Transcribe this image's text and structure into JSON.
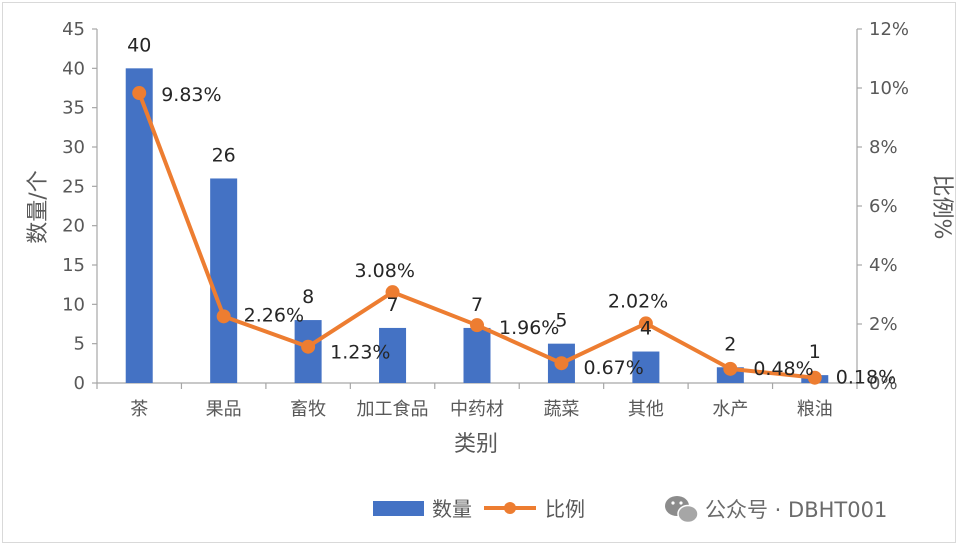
{
  "chart_data": {
    "type": "bar",
    "categories": [
      "茶",
      "果品",
      "畜牧",
      "加工食品",
      "中药材",
      "蔬菜",
      "其他",
      "水产",
      "粮油"
    ],
    "series": [
      {
        "name": "数量",
        "type": "bar",
        "axis": "left",
        "values": [
          40,
          26,
          8,
          7,
          7,
          5,
          4,
          2,
          1
        ],
        "labels": [
          "40",
          "26",
          "8",
          "7",
          "7",
          "5",
          "4",
          "2",
          "1"
        ]
      },
      {
        "name": "比例",
        "type": "line",
        "axis": "right",
        "values": [
          9.83,
          2.26,
          1.23,
          3.08,
          1.96,
          0.67,
          2.02,
          0.48,
          0.18
        ],
        "labels": [
          "9.83%",
          "2.26%",
          "1.23%",
          "3.08%",
          "1.96%",
          "0.67%",
          "2.02%",
          "0.48%",
          "0.18%"
        ]
      }
    ],
    "xlabel": "类别",
    "ylabel": "数量/个",
    "y2label": "比例%",
    "ylim": [
      0,
      45
    ],
    "y2lim": [
      0,
      12
    ],
    "yticks": [
      "0",
      "5",
      "10",
      "15",
      "20",
      "25",
      "30",
      "35",
      "40",
      "45"
    ],
    "y2ticks": [
      "0%",
      "2%",
      "4%",
      "6%",
      "8%",
      "10%",
      "12%"
    ],
    "legend_position": "bottom",
    "colors": {
      "bar": "#4472c4",
      "line": "#ed7d31",
      "axis": "#a6a6a6"
    }
  },
  "watermark": {
    "icon": "wechat-icon",
    "text": "公众号 · DBHT001"
  }
}
